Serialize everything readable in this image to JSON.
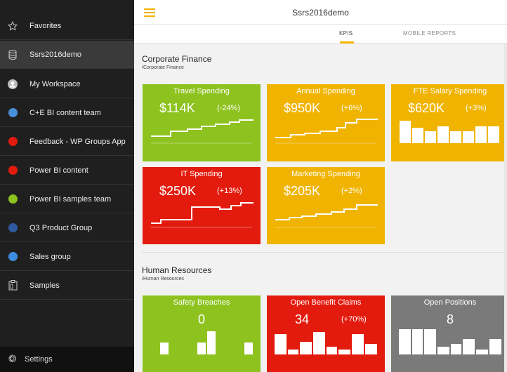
{
  "sidebar": {
    "items": [
      {
        "label": "Favorites",
        "icon": "star-icon"
      },
      {
        "label": "Ssrs2016demo",
        "icon": "database-icon"
      },
      {
        "label": "My Workspace",
        "icon": "user-avatar-icon"
      },
      {
        "label": "C+E BI content team",
        "icon": "group-dot-icon",
        "color": "#4a90d9"
      },
      {
        "label": "Feedback - WP Groups App",
        "icon": "group-dot-icon",
        "color": "#e31b0f"
      },
      {
        "label": "Power BI content",
        "icon": "group-dot-icon",
        "color": "#e31b0f"
      },
      {
        "label": "Power BI samples team",
        "icon": "group-dot-icon",
        "color": "#8dc21f"
      },
      {
        "label": "Q3 Product Group",
        "icon": "group-dot-icon",
        "color": "#2f5aa0"
      },
      {
        "label": "Sales group",
        "icon": "group-dot-icon",
        "color": "#3d8ce0"
      },
      {
        "label": "Samples",
        "icon": "clipboard-icon"
      }
    ],
    "settings_label": "Settings"
  },
  "header": {
    "title": "Ssrs2016demo",
    "tabs": [
      {
        "label": "KPIS"
      },
      {
        "label": "MOBILE REPORTS"
      }
    ]
  },
  "sections": [
    {
      "title": "Corporate Finance",
      "path": "/Corporate Finance",
      "tiles": [
        {
          "name": "Travel Spending",
          "value": "$114K",
          "change": "(-24%)",
          "color": "#8dc21f",
          "visual": "step-line"
        },
        {
          "name": "Annual Spending",
          "value": "$950K",
          "change": "(+6%)",
          "color": "#f0b400",
          "visual": "step-line"
        },
        {
          "name": "FTE Salary Spending",
          "value": "$620K",
          "change": "(+3%)",
          "color": "#f0b400",
          "visual": "bars"
        },
        {
          "name": "IT Spending",
          "value": "$250K",
          "change": "(+13%)",
          "color": "#e31b0f",
          "visual": "step-line"
        },
        {
          "name": "Marketing Spending",
          "value": "$205K",
          "change": "(+2%)",
          "color": "#f0b400",
          "visual": "step-line"
        }
      ]
    },
    {
      "title": "Human Resources",
      "path": "/Human Resources",
      "tiles": [
        {
          "name": "Safety Breaches",
          "value": "0",
          "change": "",
          "color": "#8dc21f",
          "visual": "bars"
        },
        {
          "name": "Open Benefit Claims",
          "value": "34",
          "change": "(+70%)",
          "color": "#e31b0f",
          "visual": "bars"
        },
        {
          "name": "Open Positions",
          "value": "8",
          "change": "",
          "color": "#7a7a7a",
          "visual": "bars"
        }
      ]
    }
  ]
}
